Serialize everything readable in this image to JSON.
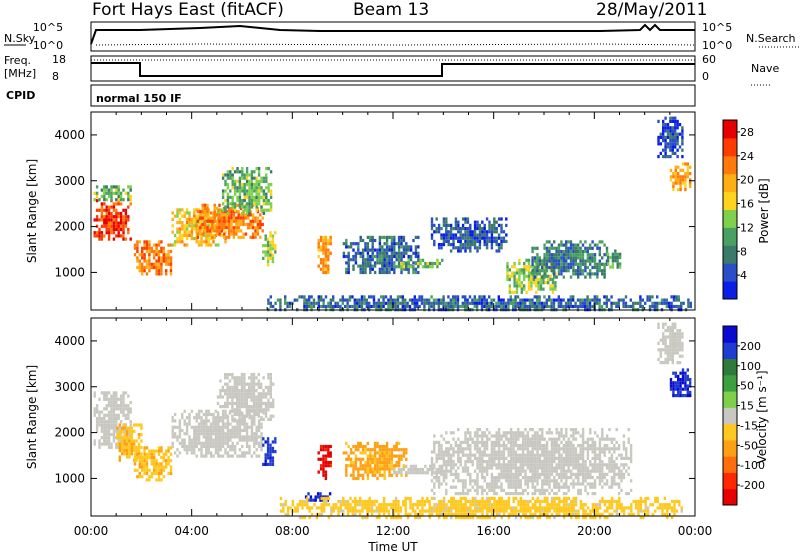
{
  "header": {
    "station": "Fort Hays East (fitACF)",
    "beam": "Beam 13",
    "date": "28/May/2011"
  },
  "noise_panel": {
    "left_label": "N.Sky",
    "left_ticks": [
      "10^5",
      "10^0"
    ],
    "right_label": "N.Search",
    "right_ticks": [
      "10^5",
      "10^0"
    ]
  },
  "freq_panel": {
    "left_label_line1": "Freq.",
    "left_label_line2": "[MHz]",
    "left_ticks": [
      "18",
      "8"
    ],
    "right_label": "Nave",
    "right_ticks": [
      "60",
      "0"
    ]
  },
  "cpid_panel": {
    "label": "CPID",
    "mode": "normal 150 IF"
  },
  "time_axis": {
    "label": "Time UT",
    "ticks": [
      "00:00",
      "04:00",
      "08:00",
      "12:00",
      "16:00",
      "20:00",
      "00:00"
    ]
  },
  "range_axis": {
    "label": "Slant Range [km]",
    "ticks": [
      "1000",
      "2000",
      "3000",
      "4000"
    ]
  },
  "colors": {
    "power_scale": [
      "#0a1ee6",
      "#2a4dc8",
      "#3a7a6a",
      "#4aa060",
      "#7fd04a",
      "#ffd21e",
      "#ffae14",
      "#ff7a0a",
      "#ff3c00",
      "#e60000"
    ],
    "velocity_scale": [
      "#0a0ad2",
      "#1e3cd2",
      "#2e7a3a",
      "#3aa040",
      "#7ed04a",
      "#c8c8c0",
      "#ffc81e",
      "#ffa014",
      "#ff6e0a",
      "#ff2800",
      "#e60000"
    ]
  },
  "chart_data": [
    {
      "type": "heatmap",
      "name": "power",
      "xlabel": "Time UT",
      "ylabel": "Slant Range [km]",
      "xlim": [
        0,
        24
      ],
      "ylim": [
        180,
        4500
      ],
      "colorbar": {
        "label": "Power [dB]",
        "ticks": [
          "4",
          "8",
          "12",
          "16",
          "20",
          "24",
          "28"
        ],
        "range": [
          0,
          30
        ]
      },
      "regions": [
        {
          "t": [
            0.1,
            1.6
          ],
          "r": [
            1700,
            2600
          ],
          "v": 26
        },
        {
          "t": [
            0.1,
            1.6
          ],
          "r": [
            2600,
            2900
          ],
          "v": 12
        },
        {
          "t": [
            1.7,
            3.2
          ],
          "r": [
            1000,
            1700
          ],
          "v": 22
        },
        {
          "t": [
            3.2,
            5.3
          ],
          "r": [
            1600,
            2400
          ],
          "v": 18
        },
        {
          "t": [
            4.2,
            6.8
          ],
          "r": [
            1800,
            2500
          ],
          "v": 22
        },
        {
          "t": [
            5.2,
            7.2
          ],
          "r": [
            2300,
            3300
          ],
          "v": 12
        },
        {
          "t": [
            6.8,
            7.3
          ],
          "r": [
            1200,
            1900
          ],
          "v": 14
        },
        {
          "t": [
            9.0,
            9.5
          ],
          "r": [
            1000,
            1800
          ],
          "v": 20
        },
        {
          "t": [
            10.0,
            13.0
          ],
          "r": [
            1000,
            1800
          ],
          "v": 6
        },
        {
          "t": [
            12.0,
            14.0
          ],
          "r": [
            1100,
            1300
          ],
          "v": 12
        },
        {
          "t": [
            13.5,
            16.5
          ],
          "r": [
            1500,
            2200
          ],
          "v": 5
        },
        {
          "t": [
            16.5,
            18.5
          ],
          "r": [
            600,
            1300
          ],
          "v": 14
        },
        {
          "t": [
            17.5,
            20.5
          ],
          "r": [
            900,
            1700
          ],
          "v": 8
        },
        {
          "t": [
            20.5,
            21.0
          ],
          "r": [
            1100,
            1500
          ],
          "v": 10
        },
        {
          "t": [
            23.0,
            23.8
          ],
          "r": [
            2800,
            3400
          ],
          "v": 20
        },
        {
          "t": [
            22.5,
            23.5
          ],
          "r": [
            3500,
            4400
          ],
          "v": 4
        },
        {
          "t": [
            7.0,
            23.8
          ],
          "r": [
            180,
            500
          ],
          "v": 6
        }
      ]
    },
    {
      "type": "heatmap",
      "name": "velocity",
      "xlabel": "Time UT",
      "ylabel": "Slant Range [km]",
      "xlim": [
        0,
        24
      ],
      "ylim": [
        180,
        4500
      ],
      "colorbar": {
        "label": "Velocity [m s⁻¹]",
        "ticks": [
          "200",
          "100",
          "50",
          "15",
          "-15",
          "-50",
          "-100",
          "-200"
        ],
        "range": [
          -250,
          250
        ]
      },
      "regions": [
        {
          "t": [
            0.1,
            1.6
          ],
          "r": [
            1700,
            2900
          ],
          "v": 0
        },
        {
          "t": [
            1.0,
            2.0
          ],
          "r": [
            1400,
            2200
          ],
          "v": -60
        },
        {
          "t": [
            1.7,
            3.2
          ],
          "r": [
            1000,
            1700
          ],
          "v": -60
        },
        {
          "t": [
            3.2,
            6.8
          ],
          "r": [
            1500,
            2500
          ],
          "v": 0
        },
        {
          "t": [
            5.0,
            7.2
          ],
          "r": [
            2300,
            3300
          ],
          "v": 0
        },
        {
          "t": [
            6.8,
            7.3
          ],
          "r": [
            1300,
            1900
          ],
          "v": 200
        },
        {
          "t": [
            9.0,
            9.5
          ],
          "r": [
            1000,
            1800
          ],
          "v": -220
        },
        {
          "t": [
            10.0,
            12.5
          ],
          "r": [
            1000,
            1800
          ],
          "v": -80
        },
        {
          "t": [
            12.0,
            14.0
          ],
          "r": [
            1100,
            1300
          ],
          "v": 0
        },
        {
          "t": [
            13.5,
            21.5
          ],
          "r": [
            700,
            2100
          ],
          "v": 0
        },
        {
          "t": [
            8.5,
            9.5
          ],
          "r": [
            500,
            700
          ],
          "v": 200
        },
        {
          "t": [
            23.0,
            23.8
          ],
          "r": [
            2800,
            3400
          ],
          "v": 200
        },
        {
          "t": [
            22.5,
            23.5
          ],
          "r": [
            3500,
            4400
          ],
          "v": 0
        },
        {
          "t": [
            7.5,
            23.5
          ],
          "r": [
            180,
            600
          ],
          "v": -40
        }
      ]
    }
  ]
}
